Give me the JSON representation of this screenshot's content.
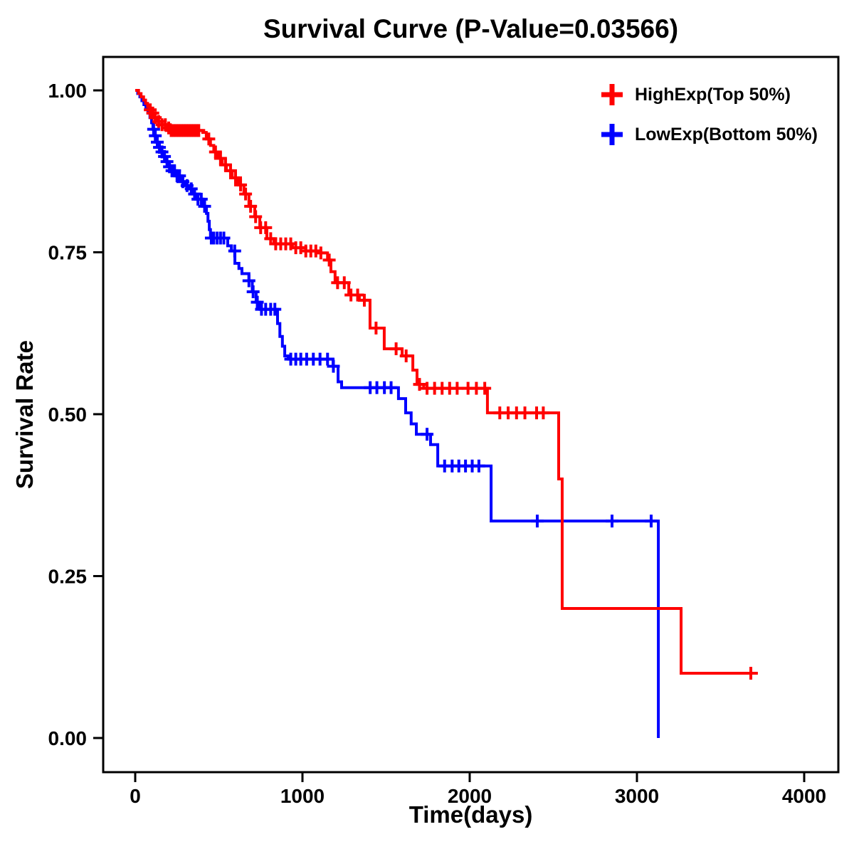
{
  "chart_data": {
    "type": "line",
    "subtype": "kaplan-meier-step-survival",
    "title": "Survival Curve (P-Value=0.03566)",
    "xlabel": "Time(days)",
    "ylabel": "Survival Rate",
    "xlim": [
      0,
      4000
    ],
    "ylim": [
      0.0,
      1.0
    ],
    "xticks": [
      0,
      1000,
      2000,
      3000,
      4000
    ],
    "yticks": [
      0.0,
      0.25,
      0.5,
      0.75,
      1.0
    ],
    "grid": false,
    "legend_position": "top-right",
    "axis_color": "#000000",
    "background": "#ffffff",
    "series": [
      {
        "name": "HighExp(Top 50%)",
        "color": "#ff0000",
        "end": 3723,
        "steps": [
          [
            0,
            1.0
          ],
          [
            20,
            0.995
          ],
          [
            35,
            0.99
          ],
          [
            50,
            0.985
          ],
          [
            62,
            0.98
          ],
          [
            74,
            0.975
          ],
          [
            86,
            0.97
          ],
          [
            98,
            0.965
          ],
          [
            110,
            0.958
          ],
          [
            135,
            0.952
          ],
          [
            160,
            0.947
          ],
          [
            185,
            0.942
          ],
          [
            215,
            0.938
          ],
          [
            404,
            0.935
          ],
          [
            425,
            0.925
          ],
          [
            450,
            0.915
          ],
          [
            470,
            0.905
          ],
          [
            495,
            0.895
          ],
          [
            520,
            0.885
          ],
          [
            545,
            0.876
          ],
          [
            580,
            0.865
          ],
          [
            617,
            0.854
          ],
          [
            650,
            0.84
          ],
          [
            680,
            0.821
          ],
          [
            715,
            0.805
          ],
          [
            745,
            0.788
          ],
          [
            787,
            0.771
          ],
          [
            830,
            0.763
          ],
          [
            940,
            0.757
          ],
          [
            1020,
            0.752
          ],
          [
            1100,
            0.749
          ],
          [
            1150,
            0.738
          ],
          [
            1170,
            0.72
          ],
          [
            1195,
            0.703
          ],
          [
            1277,
            0.684
          ],
          [
            1340,
            0.676
          ],
          [
            1404,
            0.633
          ],
          [
            1489,
            0.601
          ],
          [
            1596,
            0.59
          ],
          [
            1660,
            0.568
          ],
          [
            1685,
            0.546
          ],
          [
            1725,
            0.54
          ],
          [
            2106,
            0.502
          ],
          [
            2532,
            0.4
          ],
          [
            2553,
            0.2
          ],
          [
            3264,
            0.1
          ]
        ],
        "censors": [
          90,
          105,
          120,
          140,
          160,
          180,
          200,
          215,
          230,
          245,
          260,
          275,
          290,
          305,
          320,
          335,
          350,
          365,
          380,
          440,
          480,
          510,
          540,
          570,
          600,
          630,
          660,
          690,
          720,
          750,
          780,
          810,
          840,
          870,
          900,
          930,
          960,
          990,
          1020,
          1050,
          1080,
          1110,
          1160,
          1210,
          1250,
          1290,
          1330,
          1370,
          1440,
          1560,
          1620,
          1700,
          1745,
          1790,
          1835,
          1880,
          1925,
          1990,
          2040,
          2090,
          2180,
          2230,
          2280,
          2330,
          2400,
          2440,
          3681
        ]
      },
      {
        "name": "LowExp(Bottom 50%)",
        "color": "#0000ff",
        "end": 3128,
        "steps": [
          [
            0,
            1.0
          ],
          [
            15,
            0.995
          ],
          [
            28,
            0.99
          ],
          [
            40,
            0.984
          ],
          [
            52,
            0.978
          ],
          [
            64,
            0.972
          ],
          [
            76,
            0.965
          ],
          [
            88,
            0.958
          ],
          [
            98,
            0.95
          ],
          [
            106,
            0.94
          ],
          [
            115,
            0.93
          ],
          [
            125,
            0.92
          ],
          [
            140,
            0.912
          ],
          [
            155,
            0.905
          ],
          [
            170,
            0.898
          ],
          [
            185,
            0.89
          ],
          [
            200,
            0.882
          ],
          [
            213,
            0.876
          ],
          [
            245,
            0.868
          ],
          [
            277,
            0.859
          ],
          [
            300,
            0.853
          ],
          [
            319,
            0.848
          ],
          [
            340,
            0.84
          ],
          [
            362,
            0.832
          ],
          [
            404,
            0.821
          ],
          [
            426,
            0.81
          ],
          [
            435,
            0.798
          ],
          [
            443,
            0.785
          ],
          [
            450,
            0.772
          ],
          [
            553,
            0.76
          ],
          [
            575,
            0.752
          ],
          [
            596,
            0.733
          ],
          [
            620,
            0.725
          ],
          [
            638,
            0.717
          ],
          [
            680,
            0.706
          ],
          [
            700,
            0.689
          ],
          [
            723,
            0.673
          ],
          [
            745,
            0.662
          ],
          [
            851,
            0.64
          ],
          [
            865,
            0.62
          ],
          [
            880,
            0.605
          ],
          [
            894,
            0.59
          ],
          [
            915,
            0.585
          ],
          [
            1183,
            0.574
          ],
          [
            1213,
            0.55
          ],
          [
            1234,
            0.541
          ],
          [
            1574,
            0.524
          ],
          [
            1617,
            0.502
          ],
          [
            1650,
            0.485
          ],
          [
            1681,
            0.469
          ],
          [
            1766,
            0.453
          ],
          [
            1809,
            0.42
          ],
          [
            2128,
            0.335
          ],
          [
            3128,
            0.0
          ]
        ],
        "censors": [
          110,
          120,
          132,
          145,
          160,
          175,
          190,
          205,
          220,
          235,
          250,
          265,
          285,
          310,
          335,
          355,
          375,
          395,
          415,
          455,
          470,
          490,
          510,
          530,
          595,
          680,
          705,
          730,
          755,
          780,
          810,
          835,
          930,
          960,
          990,
          1025,
          1065,
          1105,
          1150,
          1185,
          1405,
          1445,
          1490,
          1530,
          1745,
          1850,
          1895,
          1935,
          1975,
          2015,
          2055,
          2404,
          2851,
          3085
        ]
      }
    ]
  }
}
